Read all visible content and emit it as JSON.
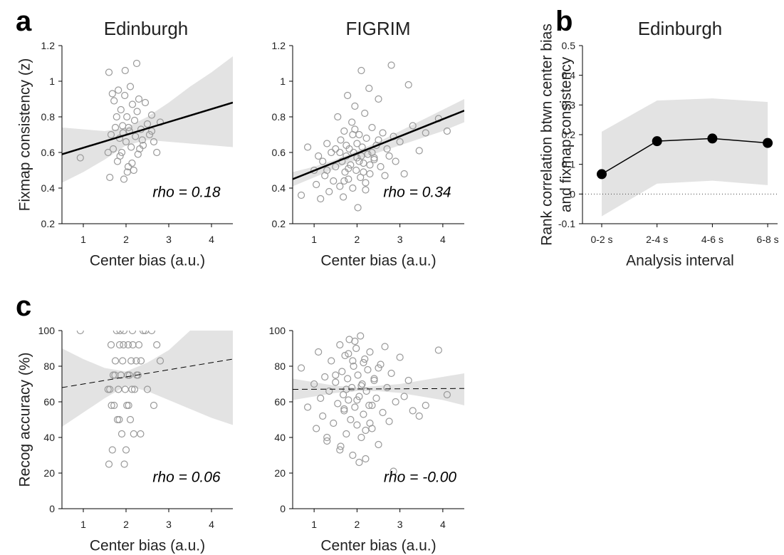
{
  "chart_data": [
    {
      "type": "scatter",
      "panel": "a",
      "title": "Edinburgh",
      "xlabel": "Center bias (a.u.)",
      "ylabel": "Fixmap consistency (z)",
      "annotation": "rho = 0.18",
      "x": [
        0.93,
        1.6,
        1.65,
        1.7,
        1.72,
        1.75,
        1.8,
        1.82,
        1.85,
        1.88,
        1.9,
        1.92,
        1.95,
        1.97,
        2.0,
        2.02,
        2.05,
        2.08,
        2.1,
        2.12,
        2.15,
        2.18,
        2.2,
        2.22,
        2.25,
        2.28,
        2.3,
        2.35,
        2.4,
        2.45,
        2.5,
        2.55,
        2.6,
        2.65,
        2.72,
        2.8,
        1.62,
        1.78,
        1.86,
        1.98,
        2.06,
        2.14,
        2.26,
        2.38,
        1.68,
        1.93,
        2.03,
        2.32,
        1.58,
        2.6
      ],
      "values": [
        0.57,
        1.05,
        0.7,
        0.62,
        0.89,
        0.74,
        0.55,
        0.95,
        0.68,
        0.84,
        0.6,
        0.75,
        0.45,
        0.92,
        0.66,
        0.8,
        0.52,
        0.72,
        0.97,
        0.63,
        0.87,
        0.5,
        0.78,
        0.69,
        1.1,
        0.59,
        0.9,
        0.73,
        0.64,
        0.88,
        0.76,
        0.7,
        0.81,
        0.66,
        0.6,
        0.77,
        0.46,
        0.8,
        0.58,
        1.06,
        0.74,
        0.54,
        0.83,
        0.67,
        0.93,
        0.71,
        0.49,
        0.62,
        0.6,
        0.72
      ],
      "color": "#999999",
      "fit": {
        "x": [
          0.5,
          4.5
        ],
        "values": [
          0.59,
          0.88
        ],
        "color": "#000000",
        "dashed": false
      },
      "band": {
        "x": [
          0.5,
          1,
          1.5,
          2,
          2.5,
          3,
          3.5,
          4,
          4.5
        ],
        "lower": [
          0.43,
          0.49,
          0.56,
          0.64,
          0.67,
          0.66,
          0.65,
          0.64,
          0.63
        ],
        "upper": [
          0.74,
          0.73,
          0.72,
          0.74,
          0.8,
          0.88,
          0.97,
          1.05,
          1.14
        ],
        "color": "#e3e3e3"
      },
      "xlim": [
        0.5,
        4.5
      ],
      "ylim": [
        0.2,
        1.2
      ],
      "xticks": [
        1,
        2,
        3,
        4
      ],
      "yticks": [
        0.2,
        0.4,
        0.6,
        0.8,
        1,
        1.2
      ]
    },
    {
      "type": "scatter",
      "title": "FIGRIM",
      "xlabel": "Center bias (a.u.)",
      "annotation": "rho = 0.34",
      "x": [
        0.7,
        0.85,
        1.0,
        1.05,
        1.1,
        1.15,
        1.2,
        1.25,
        1.3,
        1.35,
        1.4,
        1.45,
        1.5,
        1.55,
        1.6,
        1.62,
        1.65,
        1.68,
        1.7,
        1.72,
        1.75,
        1.78,
        1.8,
        1.82,
        1.85,
        1.88,
        1.9,
        1.92,
        1.95,
        1.98,
        2.0,
        2.02,
        2.05,
        2.08,
        2.1,
        2.12,
        2.15,
        2.18,
        2.2,
        2.22,
        2.25,
        2.28,
        2.3,
        2.35,
        2.4,
        2.45,
        2.5,
        2.55,
        2.6,
        2.65,
        2.7,
        2.75,
        2.8,
        2.85,
        2.9,
        3.0,
        3.1,
        3.2,
        3.3,
        3.45,
        3.6,
        3.9,
        4.1,
        1.3,
        1.5,
        1.7,
        1.9,
        2.1,
        2.3,
        2.5,
        1.6,
        1.8,
        2.0,
        2.2,
        2.4,
        1.95,
        2.05,
        1.75,
        2.15,
        2.35
      ],
      "values": [
        0.36,
        0.63,
        0.5,
        0.42,
        0.58,
        0.34,
        0.55,
        0.47,
        0.65,
        0.38,
        0.6,
        0.44,
        0.52,
        0.8,
        0.41,
        0.67,
        0.55,
        0.35,
        0.72,
        0.49,
        0.58,
        0.92,
        0.45,
        0.62,
        0.53,
        0.77,
        0.4,
        0.6,
        0.86,
        0.5,
        0.57,
        0.29,
        0.7,
        0.46,
        1.06,
        0.63,
        0.54,
        0.82,
        0.39,
        0.68,
        0.59,
        0.96,
        0.48,
        0.74,
        0.56,
        0.64,
        0.9,
        0.52,
        0.71,
        0.47,
        0.62,
        0.58,
        1.09,
        0.69,
        0.55,
        0.66,
        0.48,
        0.98,
        0.75,
        0.61,
        0.71,
        0.79,
        0.72,
        0.5,
        0.62,
        0.44,
        0.7,
        0.58,
        0.53,
        0.67,
        0.6,
        0.51,
        0.65,
        0.43,
        0.57,
        0.73,
        0.55,
        0.64,
        0.49,
        0.6
      ],
      "color": "#999999",
      "fit": {
        "x": [
          0.5,
          4.5
        ],
        "values": [
          0.45,
          0.835
        ],
        "color": "#000000",
        "dashed": false
      },
      "band": {
        "x": [
          0.5,
          1,
          1.5,
          2,
          2.5,
          3,
          3.5,
          4,
          4.5
        ],
        "lower": [
          0.41,
          0.46,
          0.51,
          0.56,
          0.6,
          0.64,
          0.68,
          0.72,
          0.77
        ],
        "upper": [
          0.49,
          0.52,
          0.56,
          0.61,
          0.66,
          0.72,
          0.78,
          0.84,
          0.9
        ],
        "color": "#e3e3e3"
      },
      "xlim": [
        0.5,
        4.5
      ],
      "ylim": [
        0.2,
        1.2
      ],
      "xticks": [
        1,
        2,
        3,
        4
      ],
      "yticks": [
        0.2,
        0.4,
        0.6,
        0.8,
        1,
        1.2
      ]
    },
    {
      "type": "line",
      "panel": "b",
      "title": "Edinburgh",
      "xlabel": "Analysis interval",
      "ylabel": [
        "Rank correlation btwn center bias",
        "and fixmap consistency"
      ],
      "categories": [
        "0-2 s",
        "2-4 s",
        "4-6 s",
        "6-8 s"
      ],
      "values": [
        0.067,
        0.178,
        0.187,
        0.172
      ],
      "color": "#000000",
      "band": {
        "lower": [
          -0.075,
          0.035,
          0.045,
          0.03
        ],
        "upper": [
          0.21,
          0.315,
          0.322,
          0.31
        ],
        "color": "#e3e3e3"
      },
      "reference_line": 0,
      "ylim": [
        -0.1,
        0.5
      ],
      "yticks": [
        -0.1,
        0,
        0.1,
        0.2,
        0.3,
        0.4,
        0.5
      ]
    },
    {
      "type": "scatter",
      "panel": "c",
      "xlabel": "Center bias (a.u.)",
      "ylabel": "Recog accuracy (%)",
      "annotation": "rho = 0.06",
      "x": [
        0.93,
        1.6,
        1.62,
        1.65,
        1.68,
        1.7,
        1.72,
        1.75,
        1.78,
        1.8,
        1.82,
        1.85,
        1.88,
        1.9,
        1.92,
        1.95,
        1.98,
        2.0,
        2.02,
        2.05,
        2.08,
        2.1,
        2.12,
        2.15,
        2.18,
        2.2,
        2.25,
        2.3,
        2.35,
        2.4,
        2.5,
        2.6,
        2.65,
        2.72,
        2.8,
        1.66,
        1.74,
        1.84,
        1.94,
        2.04,
        2.14,
        2.24,
        2.34,
        1.86,
        1.96,
        2.06,
        2.16,
        2.28,
        1.58,
        2.45
      ],
      "values": [
        100,
        25,
        67,
        92,
        33,
        75,
        58,
        83,
        100,
        50,
        67,
        92,
        75,
        42,
        83,
        100,
        67,
        33,
        58,
        92,
        75,
        50,
        83,
        100,
        42,
        67,
        75,
        92,
        83,
        100,
        67,
        100,
        58,
        92,
        83,
        58,
        75,
        50,
        92,
        75,
        67,
        83,
        42,
        100,
        25,
        58,
        92,
        75,
        67,
        100
      ],
      "color": "#999999",
      "fit": {
        "x": [
          0.5,
          4.5
        ],
        "values": [
          68,
          84
        ],
        "color": "#000000",
        "dashed": true
      },
      "band": {
        "x": [
          0.5,
          1,
          1.5,
          2,
          2.5,
          3,
          3.5,
          4,
          4.5
        ],
        "lower": [
          46,
          54,
          62,
          69,
          66,
          61,
          56,
          51,
          47
        ],
        "upper": [
          90,
          84,
          79,
          77,
          82,
          89,
          100,
          100,
          100
        ],
        "color": "#e3e3e3"
      },
      "xlim": [
        0.5,
        4.5
      ],
      "ylim": [
        0,
        100
      ],
      "xticks": [
        1,
        2,
        3,
        4
      ],
      "yticks": [
        0,
        20,
        40,
        60,
        80,
        100
      ]
    },
    {
      "type": "scatter",
      "xlabel": "Center bias (a.u.)",
      "annotation": "rho = -0.00",
      "x": [
        0.7,
        0.85,
        1.0,
        1.05,
        1.1,
        1.15,
        1.2,
        1.25,
        1.3,
        1.35,
        1.4,
        1.45,
        1.5,
        1.55,
        1.6,
        1.62,
        1.65,
        1.68,
        1.7,
        1.72,
        1.75,
        1.78,
        1.8,
        1.82,
        1.85,
        1.88,
        1.9,
        1.92,
        1.95,
        1.98,
        2.0,
        2.02,
        2.05,
        2.08,
        2.1,
        2.12,
        2.15,
        2.18,
        2.2,
        2.22,
        2.25,
        2.28,
        2.3,
        2.35,
        2.4,
        2.45,
        2.5,
        2.55,
        2.6,
        2.65,
        2.7,
        2.75,
        2.8,
        2.85,
        2.9,
        3.0,
        3.1,
        3.2,
        3.3,
        3.45,
        3.6,
        3.9,
        4.1,
        1.3,
        1.5,
        1.7,
        1.9,
        2.1,
        2.3,
        2.5,
        1.6,
        1.8,
        2.0,
        2.2,
        2.4,
        1.95,
        2.05,
        1.75,
        2.15,
        2.35
      ],
      "values": [
        79,
        57,
        70,
        45,
        88,
        62,
        52,
        74,
        38,
        66,
        83,
        48,
        71,
        59,
        92,
        35,
        77,
        64,
        55,
        86,
        42,
        73,
        61,
        95,
        50,
        68,
        30,
        80,
        57,
        90,
        47,
        75,
        63,
        97,
        40,
        70,
        53,
        84,
        28,
        66,
        78,
        58,
        88,
        45,
        72,
        62,
        36,
        81,
        54,
        91,
        68,
        49,
        76,
        21,
        60,
        85,
        63,
        72,
        55,
        52,
        58,
        89,
        64,
        40,
        75,
        56,
        83,
        69,
        48,
        79,
        33,
        87,
        61,
        44,
        73,
        94,
        26,
        67,
        82,
        58
      ],
      "color": "#999999",
      "fit": {
        "x": [
          0.5,
          4.5
        ],
        "values": [
          67,
          67.5
        ],
        "color": "#000000",
        "dashed": true
      },
      "band": {
        "x": [
          0.5,
          1,
          1.5,
          2,
          2.5,
          3,
          3.5,
          4,
          4.5
        ],
        "lower": [
          61,
          63,
          65,
          66,
          66,
          65,
          63,
          61,
          58
        ],
        "upper": [
          73,
          71,
          69,
          68,
          69,
          70,
          72,
          74,
          76
        ],
        "color": "#e3e3e3"
      },
      "xlim": [
        0.5,
        4.5
      ],
      "ylim": [
        0,
        100
      ],
      "xticks": [
        1,
        2,
        3,
        4
      ],
      "yticks": [
        0,
        20,
        40,
        60,
        80,
        100
      ]
    }
  ]
}
